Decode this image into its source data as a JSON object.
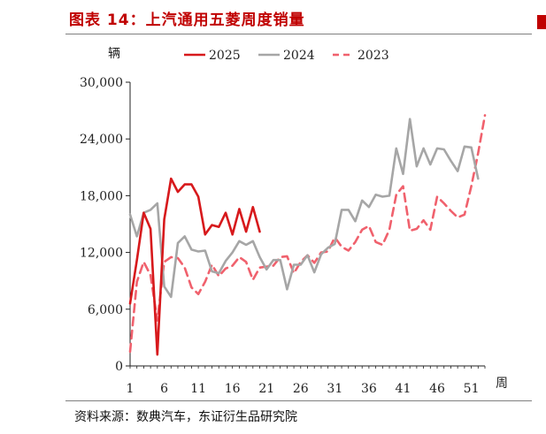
{
  "header": {
    "title": "图表 14：上汽通用五菱周度销量"
  },
  "footer": {
    "source": "资料来源：数典汽车，东证衍生品研究院"
  },
  "chart_data": {
    "type": "line",
    "title": "图表 14：上汽通用五菱周度销量",
    "ylabel": "辆",
    "xlabel": "周",
    "ylim": [
      0,
      30000
    ],
    "xlim": [
      1,
      53
    ],
    "y_ticks": [
      0,
      6000,
      12000,
      18000,
      24000,
      30000
    ],
    "y_tick_labels": [
      "0",
      "6,000",
      "12,000",
      "18,000",
      "24,000",
      "30,000"
    ],
    "x_ticks": [
      1,
      6,
      11,
      16,
      21,
      26,
      31,
      36,
      41,
      46,
      51
    ],
    "legend_position": "top",
    "grid": false,
    "series": [
      {
        "name": "2025",
        "color": "#d7191c",
        "dash": "solid",
        "x": [
          1,
          2,
          3,
          4,
          5,
          6,
          7,
          8,
          9,
          10,
          11,
          12,
          13,
          14,
          15,
          16,
          17,
          18,
          19,
          20
        ],
        "values": [
          6600,
          11200,
          16200,
          14500,
          1200,
          15500,
          19800,
          18400,
          19200,
          19200,
          17900,
          13900,
          14900,
          14700,
          16200,
          13900,
          16600,
          14200,
          16800,
          14200
        ]
      },
      {
        "name": "2024",
        "color": "#a6a6a6",
        "dash": "solid",
        "x": [
          1,
          2,
          3,
          4,
          5,
          6,
          7,
          8,
          9,
          10,
          11,
          12,
          13,
          14,
          15,
          16,
          17,
          18,
          19,
          20,
          21,
          22,
          23,
          24,
          25,
          26,
          27,
          28,
          29,
          30,
          31,
          32,
          33,
          34,
          35,
          36,
          37,
          38,
          39,
          40,
          41,
          42,
          43,
          44,
          45,
          46,
          47,
          48,
          49,
          50,
          51,
          52
        ],
        "values": [
          16000,
          13700,
          16200,
          16500,
          17200,
          8400,
          7300,
          13000,
          13700,
          12300,
          12100,
          12200,
          10000,
          9800,
          11100,
          12000,
          13200,
          12800,
          13200,
          11500,
          10200,
          11200,
          11200,
          8100,
          10700,
          10700,
          11700,
          9900,
          11800,
          12500,
          12900,
          16500,
          16500,
          15300,
          17500,
          16800,
          18100,
          17900,
          18000,
          23000,
          20300,
          26100,
          21100,
          23000,
          21300,
          23000,
          22900,
          21700,
          20600,
          23200,
          23100,
          19800
        ]
      },
      {
        "name": "2023",
        "color": "#f0616d",
        "dash": "dashed",
        "x": [
          1,
          2,
          3,
          4,
          5,
          6,
          7,
          8,
          9,
          10,
          11,
          12,
          13,
          14,
          15,
          16,
          17,
          18,
          19,
          20,
          21,
          22,
          23,
          24,
          25,
          26,
          27,
          28,
          29,
          30,
          31,
          32,
          33,
          34,
          35,
          36,
          37,
          38,
          39,
          40,
          41,
          42,
          43,
          44,
          45,
          46,
          47,
          48,
          49,
          50,
          51,
          52,
          53
        ],
        "values": [
          1500,
          8900,
          11000,
          9600,
          4800,
          11000,
          11500,
          11400,
          10400,
          8300,
          7600,
          8900,
          10700,
          9500,
          10300,
          10600,
          11500,
          11000,
          9100,
          10400,
          10500,
          10600,
          11500,
          11600,
          9800,
          11000,
          11700,
          10900,
          12000,
          12100,
          13600,
          12600,
          12200,
          13100,
          14400,
          14800,
          13100,
          12800,
          14400,
          18100,
          19000,
          14300,
          14500,
          15400,
          14400,
          17900,
          17200,
          16400,
          15700,
          16000,
          19000,
          22500,
          26500
        ]
      }
    ]
  }
}
